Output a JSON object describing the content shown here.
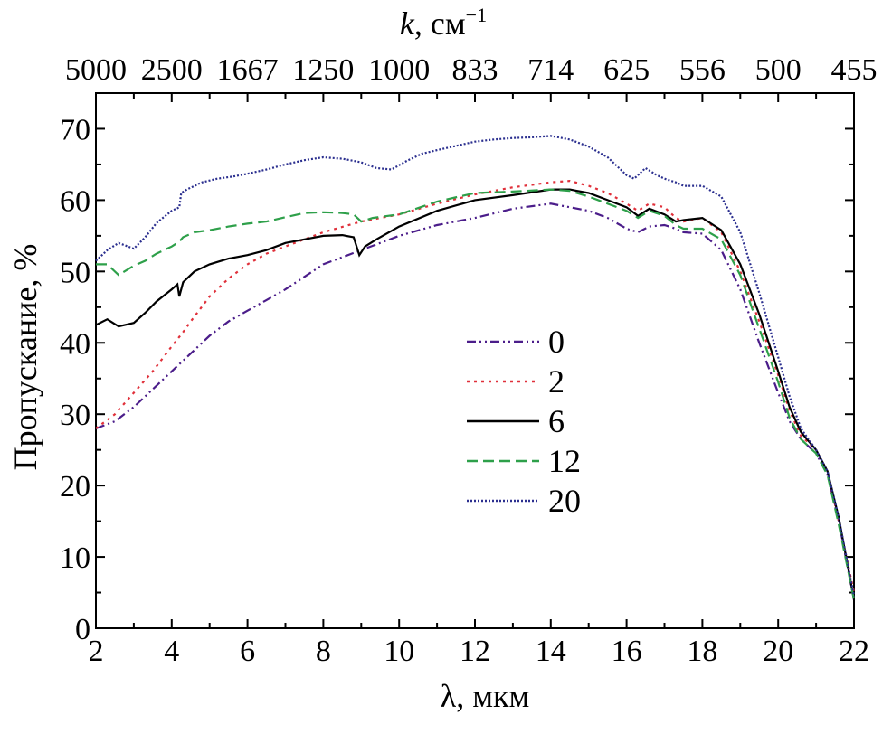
{
  "chart_data": {
    "type": "line",
    "xlabel": "λ, мкм",
    "ylabel": "Пропускание, %",
    "top_axis_label_k": "k",
    "top_axis_label_unit": ", см",
    "top_axis_label_exp": "−1",
    "xlim": [
      2,
      22
    ],
    "ylim": [
      0,
      75
    ],
    "x_ticks": [
      2,
      4,
      6,
      8,
      10,
      12,
      14,
      16,
      18,
      20,
      22
    ],
    "x_tick_labels": [
      "2",
      "4",
      "6",
      "8",
      "10",
      "12",
      "14",
      "16",
      "18",
      "20",
      "22"
    ],
    "y_ticks": [
      0,
      10,
      20,
      30,
      40,
      50,
      60,
      70
    ],
    "y_tick_labels": [
      "0",
      "10",
      "20",
      "30",
      "40",
      "50",
      "60",
      "70"
    ],
    "top_ticks_wavelength": [
      2,
      4,
      6,
      8,
      10,
      12,
      14,
      16,
      18,
      20,
      22
    ],
    "top_tick_labels": [
      "5000",
      "2500",
      "1667",
      "1250",
      "1000",
      "833",
      "714",
      "625",
      "556",
      "500",
      "455"
    ],
    "legend_position": "center",
    "series": [
      {
        "name": "0",
        "color": "#4b1d8a",
        "dash": "10,4,2,4,2,4",
        "x": [
          2.0,
          2.5,
          3.0,
          3.5,
          4.0,
          4.2,
          4.5,
          5.0,
          5.5,
          6.0,
          6.5,
          7.0,
          8.0,
          9.0,
          10.0,
          11.0,
          12.0,
          13.0,
          14.0,
          15.0,
          15.5,
          16.0,
          16.3,
          16.6,
          17.0,
          17.3,
          17.5,
          18.0,
          18.5,
          19.0,
          19.5,
          20.0,
          20.3,
          20.6,
          21.0,
          21.3,
          21.6,
          22.0
        ],
        "y": [
          28,
          29,
          31,
          33.5,
          36,
          37,
          38.5,
          41,
          43,
          44.5,
          46,
          47.5,
          51,
          53,
          55,
          56.5,
          57.5,
          58.8,
          59.5,
          58.5,
          57.5,
          56,
          55.5,
          56.3,
          56.5,
          56,
          55.5,
          55.3,
          53,
          47.5,
          40,
          33,
          29,
          26.5,
          24.5,
          21.5,
          15,
          4
        ]
      },
      {
        "name": "2",
        "color": "#e0303a",
        "dash": "3,5",
        "x": [
          2.0,
          2.5,
          3.0,
          3.5,
          4.0,
          4.3,
          4.5,
          5.0,
          5.5,
          6.0,
          6.5,
          7.0,
          8.0,
          9.0,
          10.0,
          11.0,
          12.0,
          13.0,
          14.0,
          14.5,
          15.0,
          15.5,
          16.0,
          16.3,
          16.6,
          17.0,
          17.3,
          17.5,
          18.0,
          18.5,
          19.0,
          19.5,
          20.0,
          20.3,
          20.6,
          21.0,
          21.3,
          21.6,
          22.0
        ],
        "y": [
          28,
          30,
          33,
          36,
          39.5,
          41.5,
          43,
          46.5,
          49,
          51,
          52.5,
          53.5,
          55.5,
          57,
          58,
          59.5,
          60.8,
          61.8,
          62.5,
          62.7,
          62,
          61,
          59.5,
          58.5,
          59.5,
          59,
          57.5,
          57,
          57.5,
          55.5,
          50,
          43,
          35.5,
          30.5,
          27,
          25,
          22,
          15,
          5
        ]
      },
      {
        "name": "6",
        "color": "#000000",
        "dash": "",
        "x": [
          2.0,
          2.3,
          2.6,
          3.0,
          3.3,
          3.6,
          4.0,
          4.15,
          4.2,
          4.3,
          4.6,
          5.0,
          5.5,
          6.0,
          6.5,
          7.0,
          7.5,
          8.0,
          8.5,
          8.8,
          8.95,
          9.1,
          9.4,
          10.0,
          11.0,
          12.0,
          13.0,
          14.0,
          14.5,
          15.0,
          15.5,
          16.0,
          16.3,
          16.6,
          17.0,
          17.3,
          17.5,
          18.0,
          18.5,
          19.0,
          19.5,
          20.0,
          20.3,
          20.6,
          21.0,
          21.3,
          21.6,
          22.0
        ],
        "y": [
          42.5,
          43.3,
          42.3,
          42.8,
          44.2,
          45.8,
          47.5,
          48.2,
          46.5,
          48.5,
          50,
          51,
          51.8,
          52.3,
          53,
          54,
          54.5,
          55,
          55.1,
          54.8,
          52.3,
          53.5,
          54.5,
          56.3,
          58.5,
          60,
          60.7,
          61.5,
          61.5,
          61,
          60,
          59,
          57.8,
          58.8,
          58,
          57,
          57.2,
          57.5,
          55.8,
          51,
          44,
          36,
          31,
          27.5,
          25,
          22,
          15.5,
          4
        ]
      },
      {
        "name": "12",
        "color": "#2ea04a",
        "dash": "12,6",
        "x": [
          2.0,
          2.3,
          2.6,
          3.0,
          3.3,
          3.6,
          4.0,
          4.2,
          4.3,
          4.6,
          5.0,
          5.5,
          6.0,
          6.5,
          7.0,
          7.5,
          8.0,
          8.5,
          8.8,
          9.0,
          9.3,
          10.0,
          11.0,
          12.0,
          13.0,
          14.0,
          14.5,
          15.0,
          15.5,
          16.0,
          16.3,
          16.6,
          17.0,
          17.3,
          17.5,
          18.0,
          18.5,
          19.0,
          19.5,
          20.0,
          20.3,
          20.6,
          21.0,
          21.3,
          21.6,
          22.0
        ],
        "y": [
          51,
          51,
          49.5,
          50.8,
          51.5,
          52.5,
          53.5,
          54.2,
          54.8,
          55.5,
          55.8,
          56.3,
          56.7,
          57,
          57.6,
          58.2,
          58.3,
          58.2,
          58,
          57,
          57.5,
          58,
          59.8,
          61,
          61.2,
          61.5,
          61.3,
          60.5,
          59.5,
          58.5,
          57.5,
          58.5,
          57.8,
          56.5,
          56,
          56,
          54.5,
          49.5,
          42,
          34.5,
          29.5,
          26.5,
          24.5,
          21.5,
          14.5,
          4
        ]
      },
      {
        "name": "20",
        "color": "#2b2f8f",
        "dash": "2,2",
        "x": [
          2.0,
          2.3,
          2.6,
          3.0,
          3.3,
          3.6,
          4.0,
          4.2,
          4.25,
          4.4,
          4.8,
          5.2,
          5.6,
          6.0,
          6.5,
          7.0,
          7.5,
          8.0,
          8.5,
          9.0,
          9.4,
          9.8,
          10.2,
          10.6,
          11.0,
          11.5,
          12.0,
          12.5,
          13.0,
          13.5,
          14.0,
          14.5,
          15.0,
          15.5,
          16.0,
          16.2,
          16.5,
          16.8,
          17.0,
          17.3,
          17.5,
          18.0,
          18.5,
          19.0,
          19.5,
          20.0,
          20.3,
          20.6,
          21.0,
          21.3,
          21.6,
          22.0
        ],
        "y": [
          51.5,
          53,
          54,
          53.2,
          54.8,
          56.8,
          58.5,
          59,
          61,
          61.5,
          62.5,
          63,
          63.3,
          63.7,
          64.3,
          65,
          65.6,
          66,
          65.8,
          65.3,
          64.5,
          64.3,
          65.5,
          66.5,
          67,
          67.6,
          68.2,
          68.5,
          68.7,
          68.8,
          69,
          68.5,
          67.5,
          66,
          63.5,
          63,
          64.5,
          63.5,
          63,
          62.5,
          62,
          62,
          60.5,
          55.5,
          47,
          38,
          32.5,
          28,
          25,
          22,
          15.5,
          4.5
        ]
      }
    ]
  }
}
